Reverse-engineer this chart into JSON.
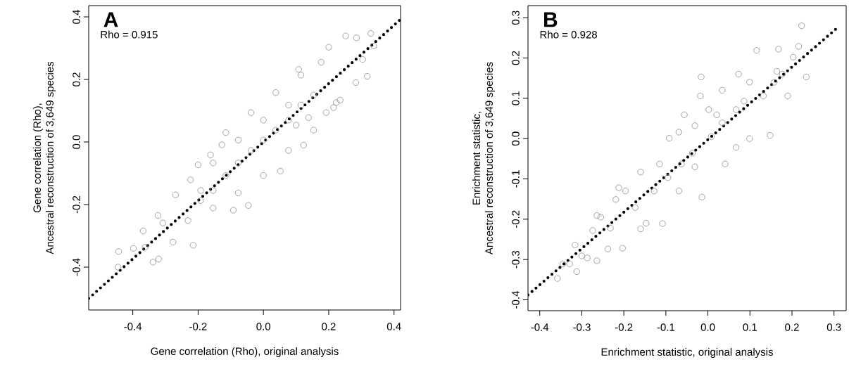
{
  "chart_data": [
    {
      "type": "scatter",
      "annotations": [
        "A",
        "Rho = 0.915"
      ],
      "xlabel": "Gene correlation (Rho), original analysis",
      "ylabel": "Gene correlation (Rho),\nAncestral reconstruction of 3,649 species",
      "xlim": [
        -0.535,
        0.42
      ],
      "ylim": [
        -0.537,
        0.436
      ],
      "xticks": [
        -0.4,
        -0.2,
        {
          "value": 0,
          "label": "0.0"
        },
        0.2,
        0.4
      ],
      "yticks": [
        -0.4,
        -0.2,
        {
          "value": 0,
          "label": "0.0"
        },
        0.2,
        0.4
      ],
      "marker": "circle",
      "series": [
        {
          "color": "#8c8c8c",
          "x": [
            0.329,
            0.252,
            0.285,
            0.318,
            0.283,
            0.304,
            0.338,
            0.108,
            0.2,
            0.123,
            0.052,
            -0.046,
            -0.092,
            -0.2,
            -0.127,
            -0.162,
            -0.269,
            -0.223,
            -0.323,
            -0.368,
            -0.443,
            -0.445,
            -0.398,
            -0.338,
            -0.321,
            -0.215,
            -0.277,
            -0.362,
            -0.308,
            0.235,
            0.223,
            0.192,
            0.077,
            0,
            -0.077,
            -0.154,
            -0.231,
            -0.038,
            -0.115,
            0.038,
            0.115,
            0.177,
            0.154,
            0.215,
            0.138,
            -0.192,
            -0.154,
            -0.077,
            0,
            0.077,
            0.1,
            -0.038,
            0.038,
            -0.115,
            -0.192,
            0.115,
            0.154,
            0,
            -0.077,
            0.077,
            -0.154
          ],
          "values": [
            0.347,
            0.339,
            0.333,
            0.21,
            0.19,
            0.264,
            0.307,
            0.232,
            0.303,
            -0.01,
            -0.093,
            -0.203,
            -0.218,
            -0.073,
            -0.009,
            -0.041,
            -0.169,
            -0.121,
            -0.235,
            -0.284,
            -0.35,
            -0.4,
            -0.34,
            -0.384,
            -0.374,
            -0.33,
            -0.32,
            -0.336,
            -0.259,
            0.134,
            0.126,
            0.094,
            -0.027,
            -0.107,
            -0.163,
            -0.211,
            -0.251,
            0.094,
            0.03,
            0.158,
            0.214,
            0.255,
            0.038,
            0.11,
            0.078,
            -0.187,
            -0.067,
            0.006,
            0.07,
            0.118,
            0.054,
            -0.027,
            0.038,
            -0.107,
            -0.155,
            0.118,
            0.15,
            0.006,
            -0.067,
            0.07,
            -0.155
          ]
        },
        {
          "type": "line",
          "color": "#000000",
          "marker": "none",
          "line_style": "dotted",
          "x": [
            -0.535,
            0.42
          ],
          "values": [
            -0.5,
            0.392
          ]
        }
      ]
    },
    {
      "type": "scatter",
      "annotations": [
        "B",
        "Rho = 0.928"
      ],
      "xlabel": "Enrichment statistic, original analysis",
      "ylabel": "Enrichment statistic,\nAncestral reconstruction of 3,649 species",
      "xlim": [
        -0.428,
        0.329
      ],
      "ylim": [
        -0.427,
        0.33
      ],
      "xticks": [
        -0.4,
        -0.3,
        -0.2,
        -0.1,
        {
          "value": 0,
          "label": "0.0"
        },
        0.1,
        0.2,
        0.3
      ],
      "yticks": [
        -0.4,
        -0.3,
        -0.2,
        -0.1,
        {
          "value": 0,
          "label": "0.0"
        },
        0.1,
        0.2,
        0.3
      ],
      "marker": "circle",
      "series": [
        {
          "color": "#8c8c8c",
          "x": [
            0.223,
            0.116,
            0.216,
            0.234,
            0.168,
            0.203,
            -0.016,
            -0.018,
            -0.014,
            0.148,
            0.099,
            0.19,
            -0.092,
            -0.069,
            -0.16,
            -0.212,
            -0.196,
            -0.219,
            -0.264,
            -0.255,
            -0.16,
            -0.147,
            -0.203,
            -0.264,
            -0.287,
            -0.3,
            -0.316,
            -0.312,
            -0.329,
            -0.345,
            -0.358,
            -0.238,
            -0.274,
            -0.232,
            -0.108,
            0.041,
            -0.031,
            0.008,
            0.034,
            0.067,
            0.132,
            0.099,
            0.073,
            0.034,
            0.002,
            -0.056,
            -0.031,
            -0.037,
            0.086,
            0.158,
            0.177,
            0.164,
            -0.063,
            -0.095,
            -0.128,
            -0.173,
            -0.115,
            -0.069,
            0.067,
            0.021
          ],
          "values": [
            0.28,
            0.219,
            0.229,
            0.153,
            0.222,
            0.202,
            0.153,
            0.106,
            -0.145,
            0.008,
            0,
            0.106,
            0.001,
            0.016,
            -0.083,
            -0.122,
            -0.13,
            -0.151,
            -0.191,
            -0.195,
            -0.224,
            -0.21,
            -0.272,
            -0.303,
            -0.296,
            -0.291,
            -0.264,
            -0.33,
            -0.311,
            -0.311,
            -0.347,
            -0.274,
            -0.228,
            -0.222,
            -0.211,
            -0.063,
            -0.07,
            0.005,
            0.039,
            0.072,
            0.106,
            0.14,
            0.16,
            0.12,
            0.072,
            0.059,
            0.032,
            -0.036,
            0.093,
            0.14,
            0.16,
            0.167,
            -0.063,
            -0.097,
            -0.13,
            -0.171,
            -0.063,
            -0.13,
            -0.022,
            0.059
          ]
        },
        {
          "type": "line",
          "color": "#000000",
          "marker": "none",
          "line_style": "dotted",
          "x": [
            -0.428,
            0.307
          ],
          "values": [
            -0.388,
            0.274
          ]
        }
      ]
    }
  ]
}
